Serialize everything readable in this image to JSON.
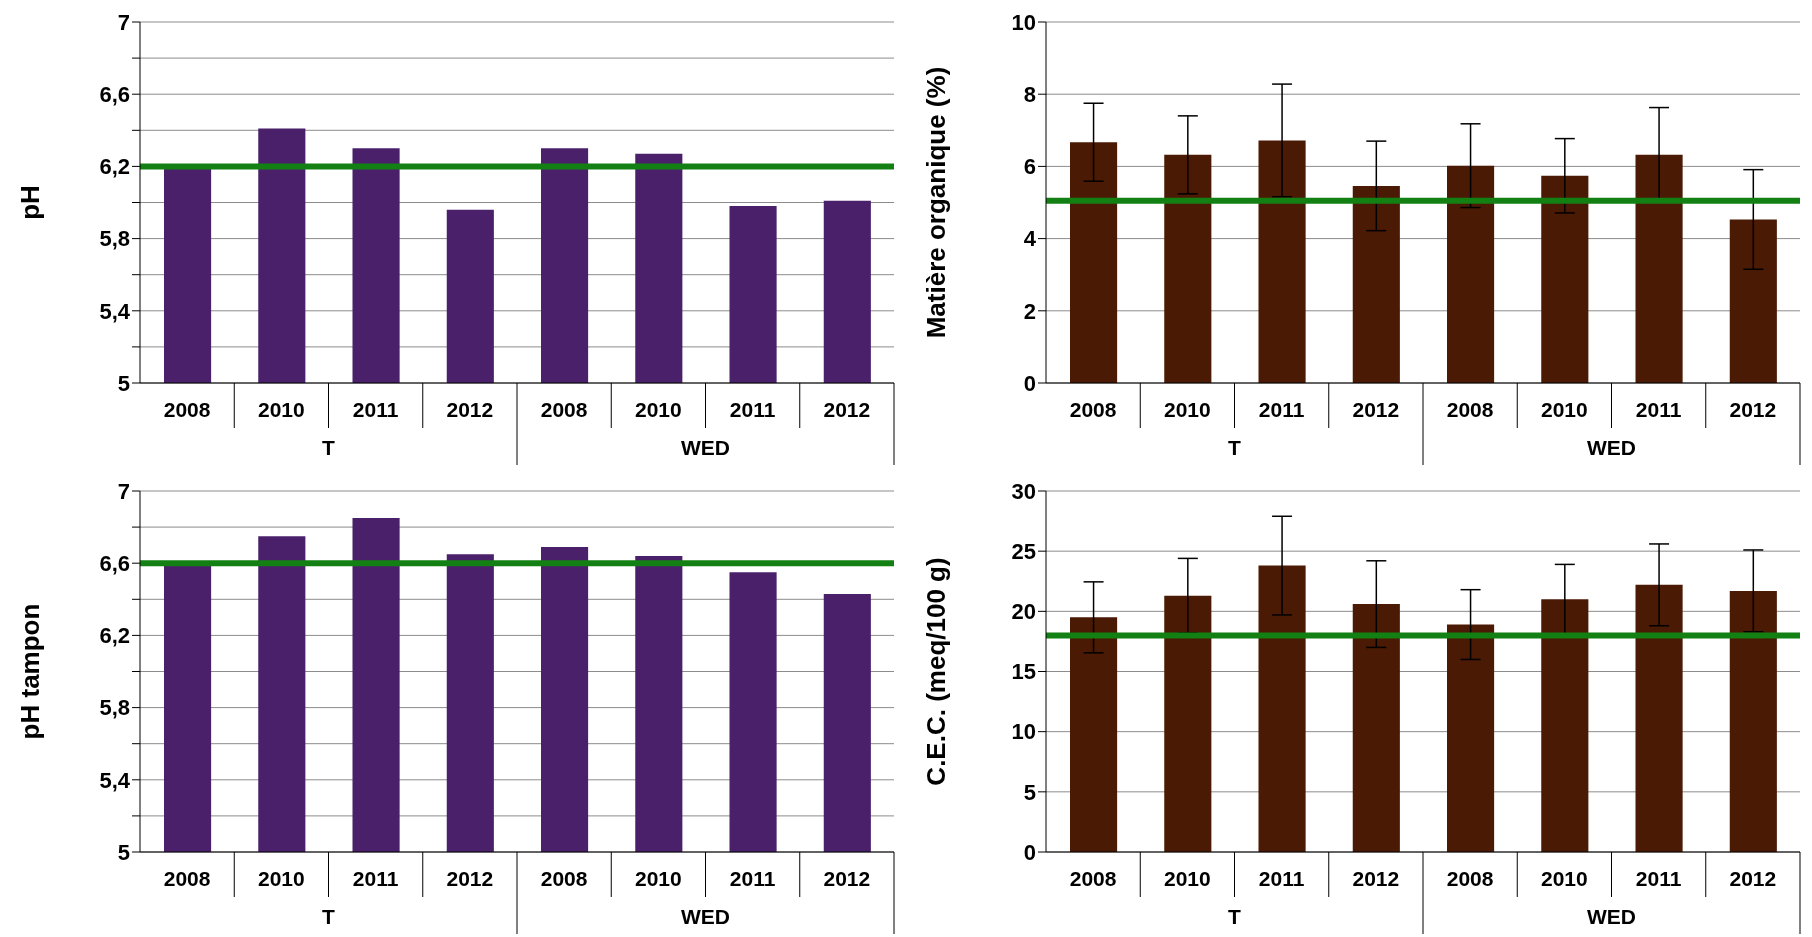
{
  "chart_data": [
    {
      "type": "bar",
      "ylabel": "pH",
      "categories": [
        "2008",
        "2010",
        "2011",
        "2012",
        "2008",
        "2010",
        "2011",
        "2012"
      ],
      "annotations": [
        "T",
        "WED"
      ],
      "values": [
        6.2,
        6.41,
        6.3,
        5.96,
        6.3,
        6.27,
        5.98,
        6.01
      ],
      "color": "#4b206b",
      "ylim": [
        5,
        7
      ],
      "yticks": [
        5,
        {
          "value": 5.2,
          "label": null
        },
        {
          "value": 5.4,
          "label": "5,4"
        },
        {
          "value": 5.6,
          "label": null
        },
        {
          "value": 5.8,
          "label": "5,8"
        },
        {
          "value": 6.0,
          "label": null
        },
        {
          "value": 6.2,
          "label": "6,2"
        },
        {
          "value": 6.4,
          "label": null
        },
        {
          "value": 6.6,
          "label": "6,6"
        },
        {
          "value": 6.8,
          "label": null
        },
        7
      ],
      "grid": "y",
      "ref_lines": [
        {
          "axis": "y",
          "value": 6.2,
          "label": null,
          "color": "#138013"
        }
      ]
    },
    {
      "type": "bar",
      "ylabel": "Matière organique (%)",
      "categories": [
        "2008",
        "2010",
        "2011",
        "2012",
        "2008",
        "2010",
        "2011",
        "2012"
      ],
      "annotations": [
        "T",
        "WED"
      ],
      "values": [
        6.67,
        6.32,
        6.72,
        5.46,
        6.02,
        5.74,
        6.32,
        4.53
      ],
      "errors": [
        1.08,
        1.08,
        1.56,
        1.24,
        1.16,
        1.03,
        1.31,
        1.38
      ],
      "color": "#4b1a04",
      "ylim": [
        0,
        10
      ],
      "yticks": [
        0,
        2,
        4,
        6,
        8,
        10
      ],
      "grid": "y",
      "ref_lines": [
        {
          "axis": "y",
          "value": 5.05,
          "label": null,
          "color": "#138013"
        }
      ]
    },
    {
      "type": "bar",
      "ylabel": "pH tampon",
      "categories": [
        "2008",
        "2010",
        "2011",
        "2012",
        "2008",
        "2010",
        "2011",
        "2012"
      ],
      "annotations": [
        "T",
        "WED"
      ],
      "values": [
        6.6,
        6.75,
        6.85,
        6.65,
        6.69,
        6.64,
        6.55,
        6.43
      ],
      "color": "#4b206b",
      "ylim": [
        5,
        7
      ],
      "yticks": [
        5,
        {
          "value": 5.2,
          "label": null
        },
        {
          "value": 5.4,
          "label": "5,4"
        },
        {
          "value": 5.6,
          "label": null
        },
        {
          "value": 5.8,
          "label": "5,8"
        },
        {
          "value": 6.0,
          "label": null
        },
        {
          "value": 6.2,
          "label": "6,2"
        },
        {
          "value": 6.4,
          "label": null
        },
        {
          "value": 6.6,
          "label": "6,6"
        },
        {
          "value": 6.8,
          "label": null
        },
        7
      ],
      "grid": "y",
      "ref_lines": [
        {
          "axis": "y",
          "value": 6.6,
          "label": null,
          "color": "#138013"
        }
      ]
    },
    {
      "type": "bar",
      "ylabel": "C.E.C. (meq/100 g)",
      "categories": [
        "2008",
        "2010",
        "2011",
        "2012",
        "2008",
        "2010",
        "2011",
        "2012"
      ],
      "annotations": [
        "T",
        "WED"
      ],
      "values": [
        19.5,
        21.3,
        23.8,
        20.6,
        18.9,
        21.0,
        22.2,
        21.7
      ],
      "errors": [
        2.95,
        3.1,
        4.1,
        3.6,
        2.9,
        2.9,
        3.4,
        3.4
      ],
      "color": "#4b1a04",
      "ylim": [
        0,
        30
      ],
      "yticks": [
        0,
        5,
        10,
        15,
        20,
        25,
        30
      ],
      "grid": "y",
      "ref_lines": [
        {
          "axis": "y",
          "value": 18.0,
          "label": null,
          "color": "#138013"
        }
      ]
    }
  ]
}
